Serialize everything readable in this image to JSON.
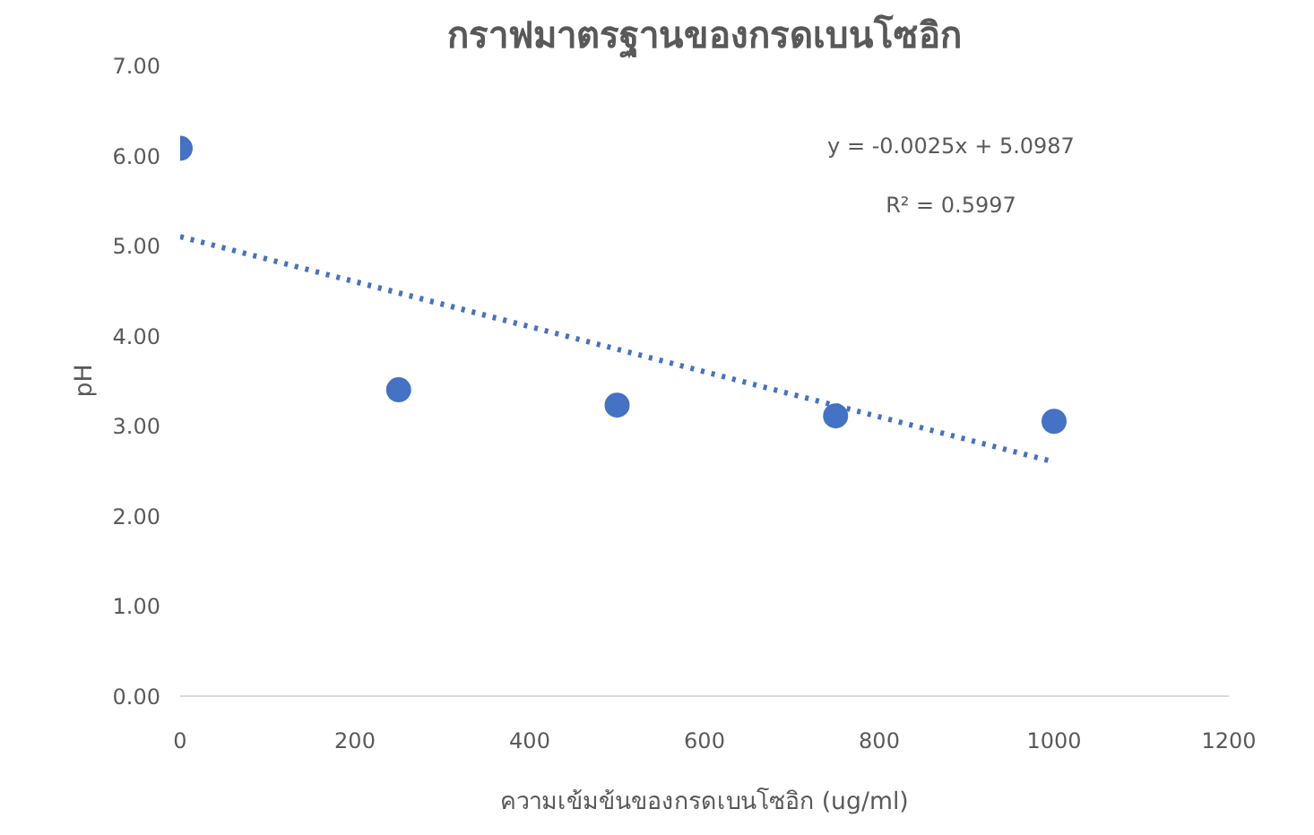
{
  "chart_data": {
    "type": "scatter",
    "title": "กราฟมาตรฐานของกรดเบนโซอิก",
    "xlabel": "ความเข้มข้นของกรดเบนโซอิก (ug/ml)",
    "ylabel": "pH",
    "x": [
      0,
      250,
      500,
      750,
      1000
    ],
    "series": [
      {
        "color": "#4472c4",
        "values": [
          6.08,
          3.4,
          3.23,
          3.11,
          3.05
        ],
        "marker": "circle"
      },
      {
        "type": "line",
        "color": "#4472c4",
        "x": [
          0,
          1000
        ],
        "values": [
          5.1,
          2.6
        ],
        "line_style": "dotted",
        "marker": "none"
      }
    ],
    "annotations": [
      "y = -0.0025x + 5.0987",
      "R² = 0.5997"
    ],
    "xlim": [
      0,
      1200
    ],
    "xticks": [
      0,
      200,
      400,
      600,
      800,
      1000,
      1200
    ],
    "ylim": [
      0,
      7
    ],
    "yticks": [
      {
        "value": 0,
        "label": "0.00"
      },
      {
        "value": 1,
        "label": "1.00"
      },
      {
        "value": 2,
        "label": "2.00"
      },
      {
        "value": 3,
        "label": "3.00"
      },
      {
        "value": 4,
        "label": "4.00"
      },
      {
        "value": 5,
        "label": "5.00"
      },
      {
        "value": 6,
        "label": "6.00"
      },
      {
        "value": 7,
        "label": "7.00"
      }
    ],
    "grid": false
  }
}
